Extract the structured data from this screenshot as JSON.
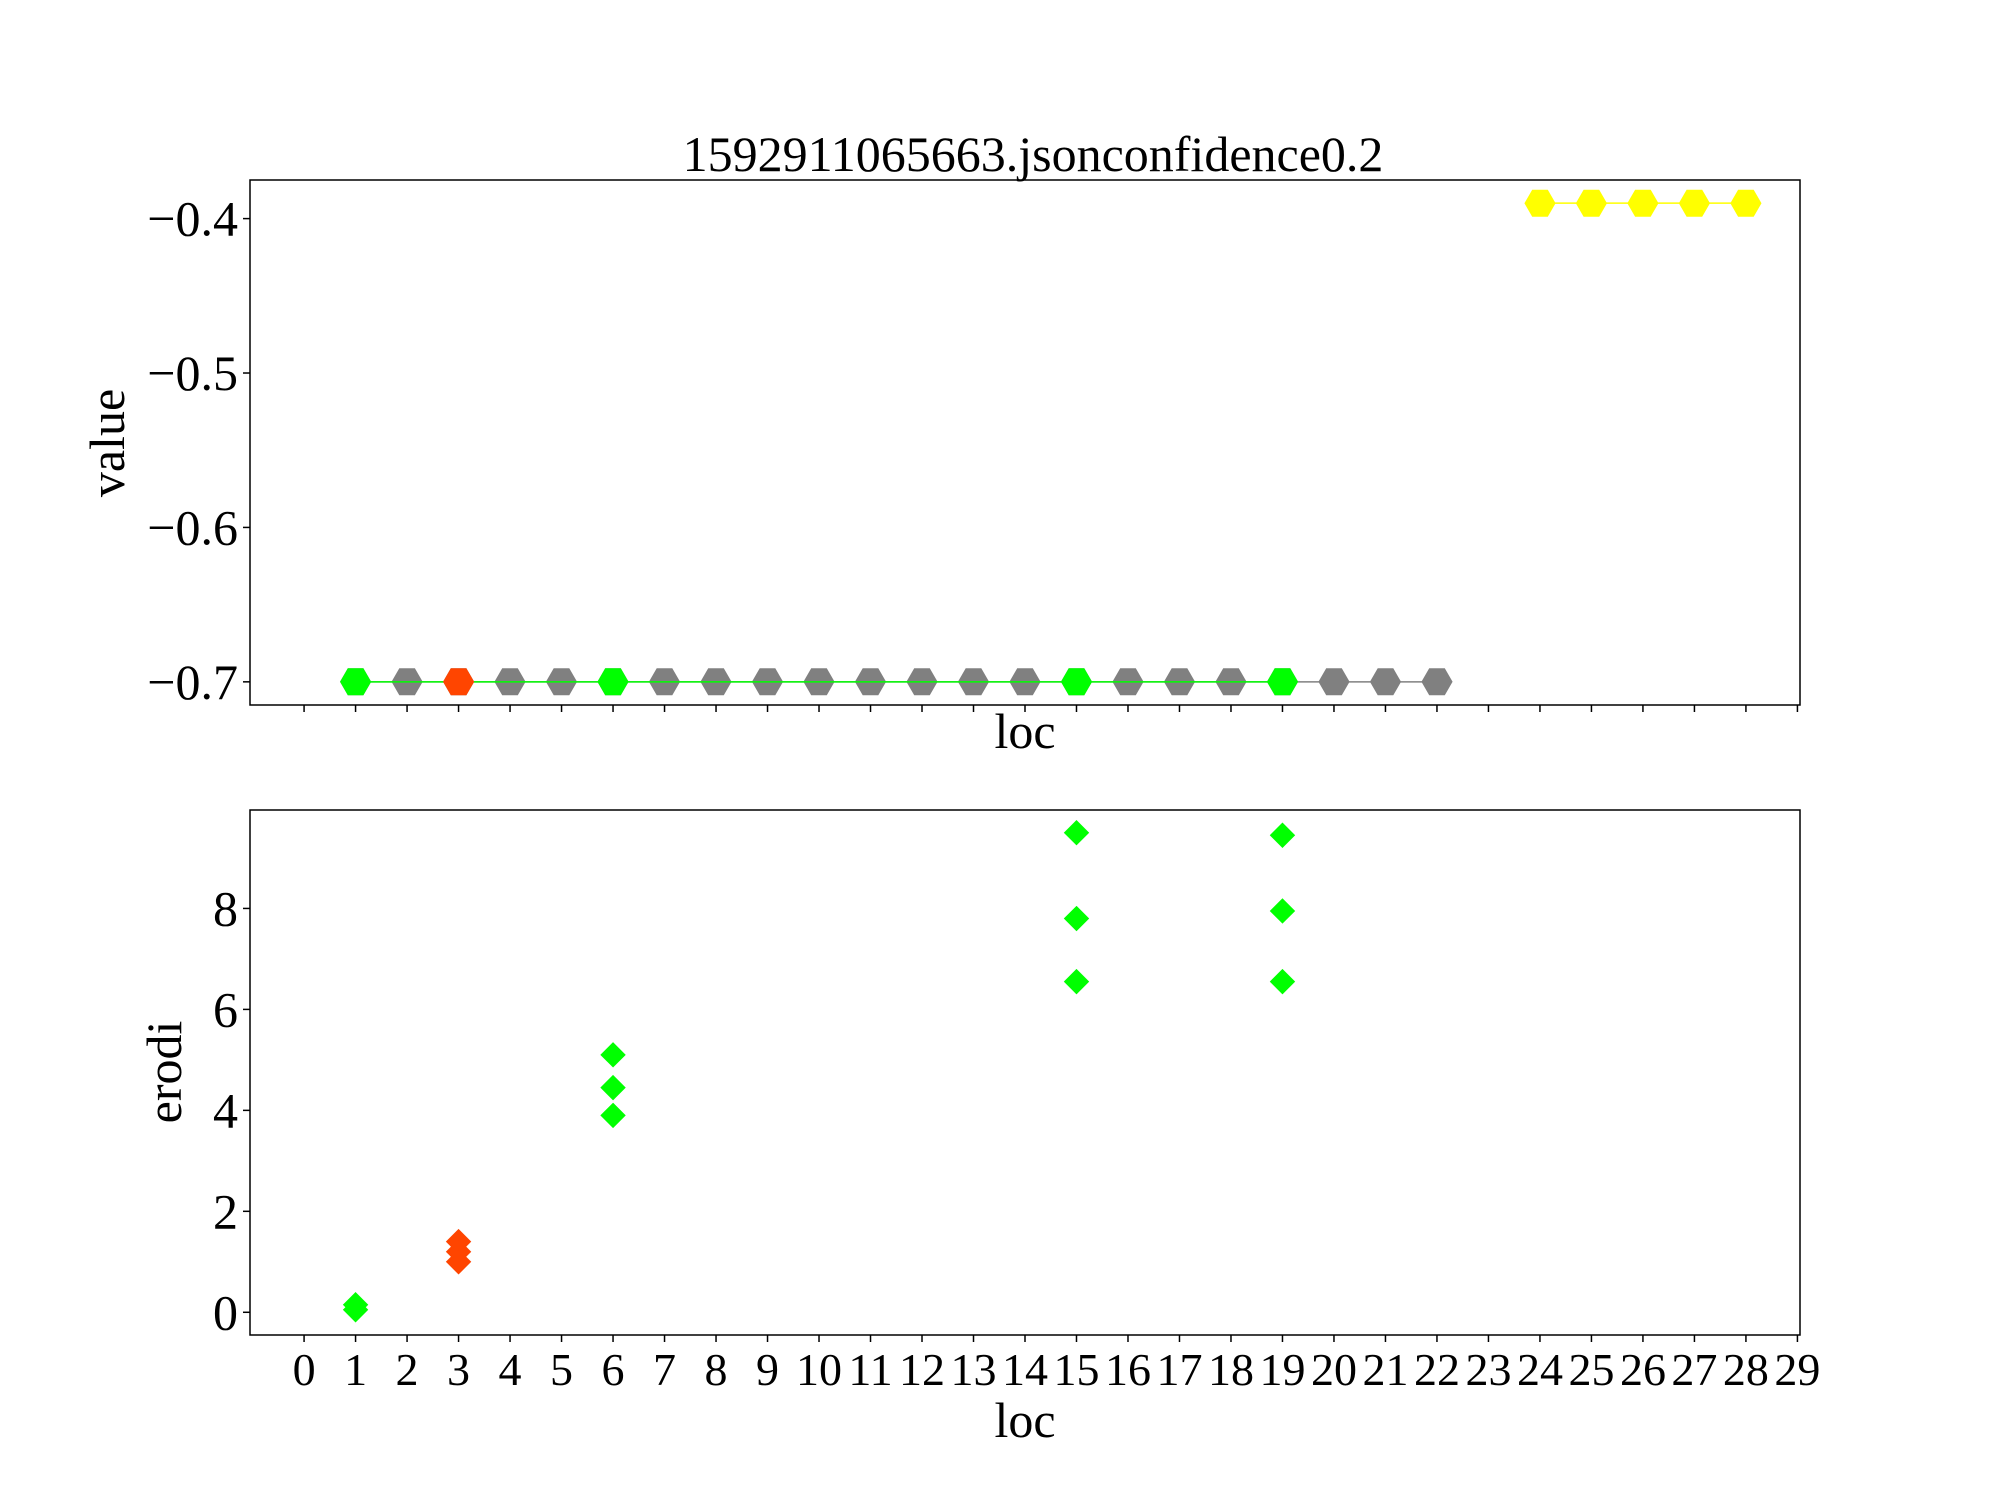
{
  "chart_data": [
    {
      "type": "line",
      "title": "1592911065663.jsonconfidence0.2",
      "xlabel": "loc",
      "ylabel": "value",
      "xlim": [
        -1.05,
        29.05
      ],
      "ylim": [
        -0.715,
        -0.375
      ],
      "yticks": [
        -0.4,
        -0.5,
        -0.6,
        -0.7
      ],
      "ytick_labels": [
        "−0.4",
        "−0.5",
        "−0.6",
        "−0.7"
      ],
      "marker": "hexagon",
      "series": [
        {
          "color": "#808080",
          "x": [
            1,
            2,
            3,
            4,
            5,
            6,
            7,
            8,
            9,
            10,
            11,
            12,
            13,
            14,
            15,
            16,
            17,
            18,
            19,
            20,
            21,
            22
          ],
          "y": [
            -0.7,
            -0.7,
            -0.7,
            -0.7,
            -0.7,
            -0.7,
            -0.7,
            -0.7,
            -0.7,
            -0.7,
            -0.7,
            -0.7,
            -0.7,
            -0.7,
            -0.7,
            -0.7,
            -0.7,
            -0.7,
            -0.7,
            -0.7,
            -0.7,
            -0.7
          ]
        },
        {
          "color": "#00ff00",
          "x": [
            1,
            6,
            15,
            19
          ],
          "y": [
            -0.7,
            -0.7,
            -0.7,
            -0.7
          ]
        },
        {
          "color": "#ff4500",
          "x": [
            3
          ],
          "y": [
            -0.7
          ]
        },
        {
          "color": "#ffff00",
          "x": [
            24,
            25,
            26,
            27,
            28
          ],
          "y": [
            -0.39,
            -0.39,
            -0.39,
            -0.39,
            -0.39
          ]
        }
      ]
    },
    {
      "type": "scatter",
      "xlabel": "loc",
      "ylabel": "erodi",
      "xlim": [
        -1.05,
        29.05
      ],
      "ylim": [
        -0.45,
        9.95
      ],
      "yticks": [
        0,
        2,
        4,
        6,
        8
      ],
      "ytick_labels": [
        "0",
        "2",
        "4",
        "6",
        "8"
      ],
      "xticks": [
        0,
        1,
        2,
        3,
        4,
        5,
        6,
        7,
        8,
        9,
        10,
        11,
        12,
        13,
        14,
        15,
        16,
        17,
        18,
        19,
        20,
        21,
        22,
        23,
        24,
        25,
        26,
        27,
        28,
        29
      ],
      "xtick_labels": [
        "0",
        "1",
        "2",
        "3",
        "4",
        "5",
        "6",
        "7",
        "8",
        "9",
        "10",
        "11",
        "12",
        "13",
        "14",
        "15",
        "16",
        "17",
        "18",
        "19",
        "20",
        "21",
        "22",
        "23",
        "24",
        "25",
        "26",
        "27",
        "28",
        "29"
      ],
      "marker": "diamond",
      "series": [
        {
          "color": "#00ff00",
          "x": [
            1,
            1,
            6,
            6,
            6,
            15,
            15,
            15,
            19,
            19,
            19
          ],
          "y": [
            0.15,
            0.05,
            5.1,
            4.45,
            3.9,
            9.5,
            7.8,
            6.55,
            9.45,
            7.95,
            6.55
          ]
        },
        {
          "color": "#ff4500",
          "x": [
            3,
            3,
            3
          ],
          "y": [
            1.4,
            1.2,
            1.0
          ]
        }
      ]
    }
  ]
}
